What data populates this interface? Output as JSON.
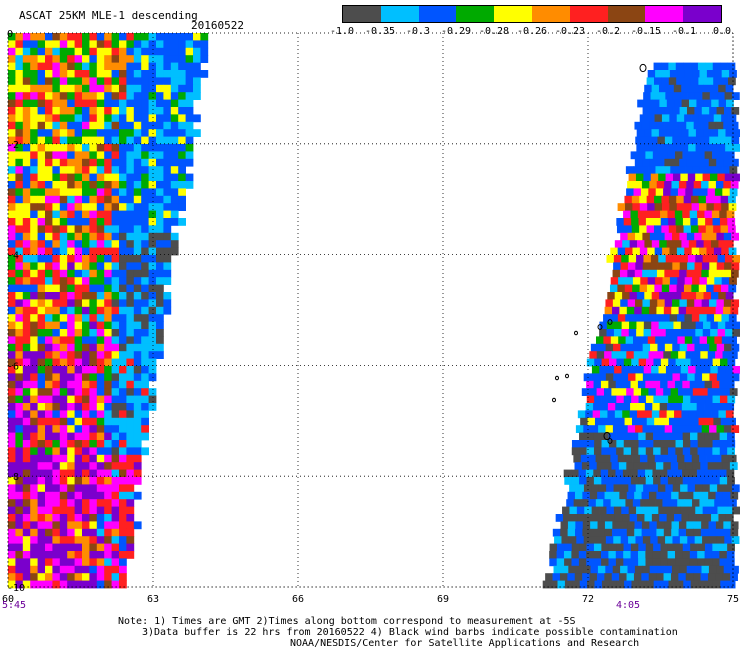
{
  "header": {
    "title": "ASCAT 25KM MLE-1 descending",
    "date": "20160522"
  },
  "colorbar": {
    "colors": [
      "#4d4d4d",
      "#00bfff",
      "#0055ff",
      "#00aa00",
      "#ffff00",
      "#ff8c00",
      "#ff2020",
      "#8b4513",
      "#ff00ff",
      "#7a00cc"
    ],
    "labels": [
      "-1.0",
      "-0.35",
      "-0.3",
      "-0.29",
      "-0.28",
      "-0.26",
      "-0.23",
      "-0.2",
      "-0.15",
      "-0.1",
      "0.0"
    ]
  },
  "axes": {
    "x_labels": [
      "60",
      "63",
      "66",
      "69",
      "72",
      "75"
    ],
    "y_labels": [
      "0",
      "-2",
      "-4",
      "-6",
      "-8",
      "-10"
    ],
    "lon_range": [
      60,
      75
    ],
    "lat_range": [
      -10,
      0
    ]
  },
  "times": {
    "left": "5:45",
    "right": "4:05"
  },
  "notes": [
    "Note: 1) Times are GMT 2)Times along bottom correspond to measurement at -5S",
    "3)Data buffer is 22 hrs from 20160522 4) Black wind barbs indicate possible contamination",
    "NOAA/NESDIS/Center for Satellite Applications and Research"
  ]
}
